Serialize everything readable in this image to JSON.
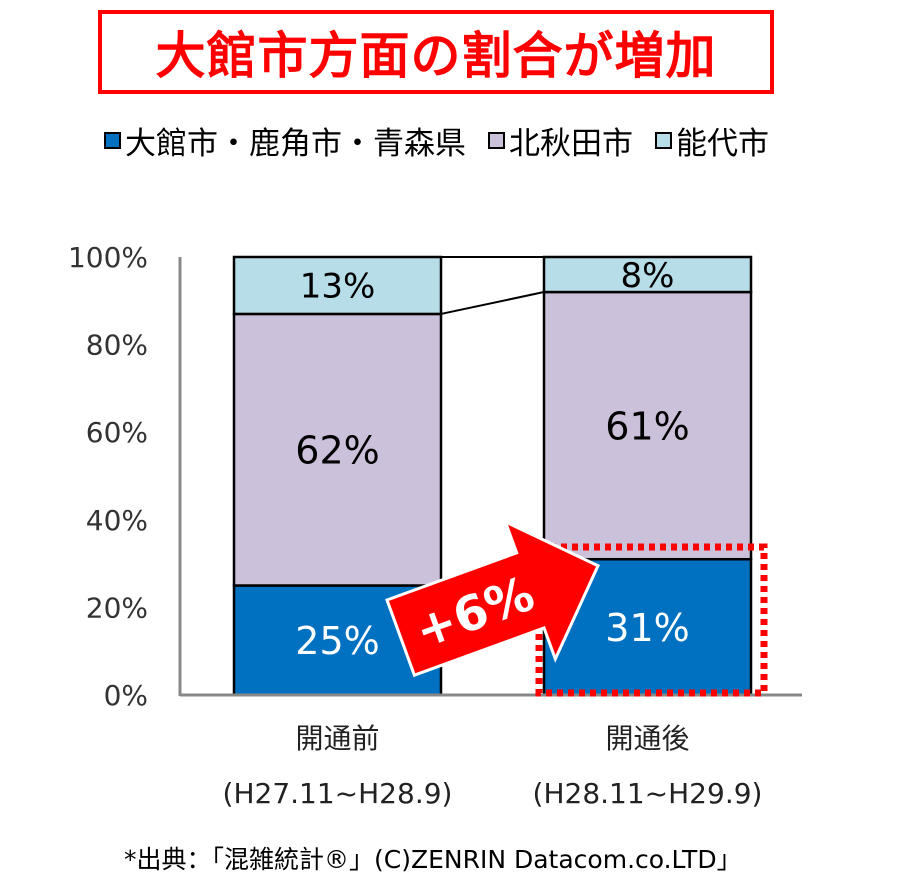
{
  "title": "大館市方面の割合が増加",
  "chart_data": {
    "type": "bar",
    "stacked": true,
    "categories": [
      "開通前",
      "開通後"
    ],
    "category_sublabels": [
      "(H27.11~H28.9)",
      "(H28.11~H29.9)"
    ],
    "series": [
      {
        "name": "大館市・鹿角市・青森県",
        "values": [
          25,
          31
        ],
        "color": "#0070c0",
        "text_color": "#ffffff"
      },
      {
        "name": "北秋田市",
        "values": [
          62,
          61
        ],
        "color": "#ccc1da",
        "text_color": "#000000"
      },
      {
        "name": "能代市",
        "values": [
          13,
          8
        ],
        "color": "#b7dee8",
        "text_color": "#000000"
      }
    ],
    "data_labels": [
      [
        "25%",
        "31%"
      ],
      [
        "62%",
        "61%"
      ],
      [
        "13%",
        "8%"
      ]
    ],
    "yticks": [
      "0%",
      "20%",
      "40%",
      "60%",
      "80%",
      "100%"
    ],
    "ylim": [
      0,
      100
    ],
    "legend_position": "top",
    "annotation": "+6%",
    "annotation_color": "#ff0000",
    "highlight_color": "#ff0000"
  },
  "source": "*出典：「混雑統計®」(C)ZENRIN Datacom.co.LTD」"
}
